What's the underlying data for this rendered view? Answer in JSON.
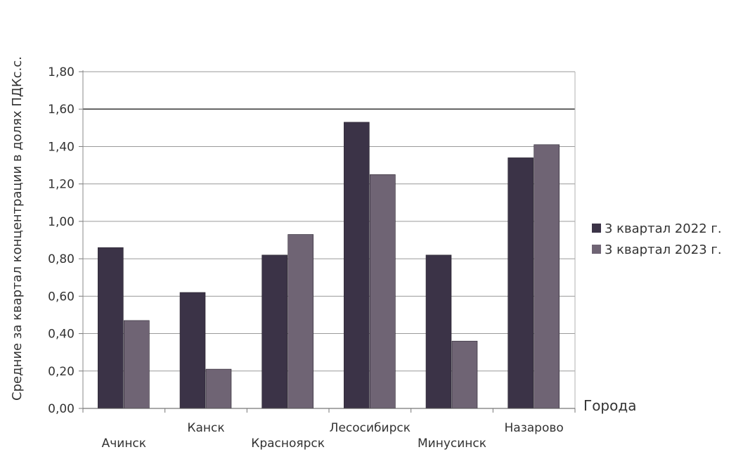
{
  "chart_data": {
    "type": "bar",
    "categories": [
      "Ачинск",
      "Канск",
      "Красноярск",
      "Лесосибирск",
      "Минусинск",
      "Назарово"
    ],
    "series": [
      {
        "name": "3 квартал 2022 г.",
        "color": "#3b3347",
        "values": [
          0.86,
          0.62,
          0.82,
          1.53,
          0.82,
          1.34
        ]
      },
      {
        "name": "3 квартал 2023 г.",
        "color": "#6f6474",
        "values": [
          0.47,
          0.21,
          0.93,
          1.25,
          0.36,
          1.41
        ]
      }
    ],
    "ylabel": "Средние за квартал концентрации в долях ПДКс.с.",
    "xlabel": "Города",
    "ylim": [
      0,
      1.8
    ],
    "yticks": [
      "0,00",
      "0,20",
      "0,40",
      "0,60",
      "0,80",
      "1,00",
      "1,20",
      "1,40",
      "1,60",
      "1,80"
    ],
    "reference_line": 1.6,
    "grid": true,
    "legend_position": "right"
  }
}
